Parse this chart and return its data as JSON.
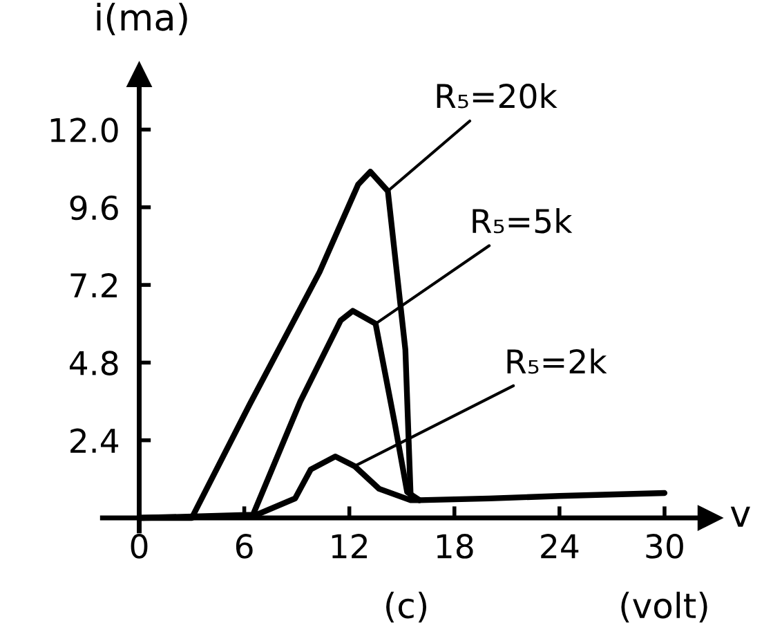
{
  "chart_data": {
    "type": "line",
    "ylabel": "i(ma)",
    "xlabel": "v",
    "annotations": [
      "(c)",
      "(volt)"
    ],
    "xlim": [
      -2.1,
      32.6
    ],
    "ylim": [
      -0.4,
      13.7
    ],
    "xticks": [
      0,
      6,
      12,
      18,
      24,
      30
    ],
    "yticks": [
      2.4,
      4.8,
      7.2,
      9.6,
      {
        "value": 12,
        "label": "12.0"
      }
    ],
    "grid": false,
    "legend": false,
    "marker": "none",
    "line_style": "solid",
    "series": [
      {
        "name": "R₅=20k",
        "color": "#000000",
        "x": [
          0,
          3.0,
          6.3,
          10.3,
          12.5,
          13.2,
          14.2,
          15.2,
          15.5,
          16,
          20,
          24,
          30
        ],
        "values": [
          0,
          0,
          3.5,
          7.6,
          10.3,
          10.7,
          10.1,
          5.2,
          0.7,
          0.55,
          0.6,
          0.68,
          0.77
        ]
      },
      {
        "name": "R₅=5k",
        "color": "#000000",
        "x": [
          0,
          6.5,
          9.2,
          11.5,
          12.2,
          13.5,
          14.6,
          15.3,
          16
        ],
        "values": [
          0,
          0.1,
          3.6,
          6.1,
          6.4,
          6.0,
          2.9,
          0.8,
          0.55
        ]
      },
      {
        "name": "R₅=2k",
        "color": "#000000",
        "x": [
          0,
          6.5,
          8.9,
          9.8,
          11.2,
          12.3,
          13.7,
          15.5,
          16
        ],
        "values": [
          0,
          0.05,
          0.6,
          1.5,
          1.9,
          1.6,
          0.9,
          0.55,
          0.55
        ]
      }
    ]
  }
}
